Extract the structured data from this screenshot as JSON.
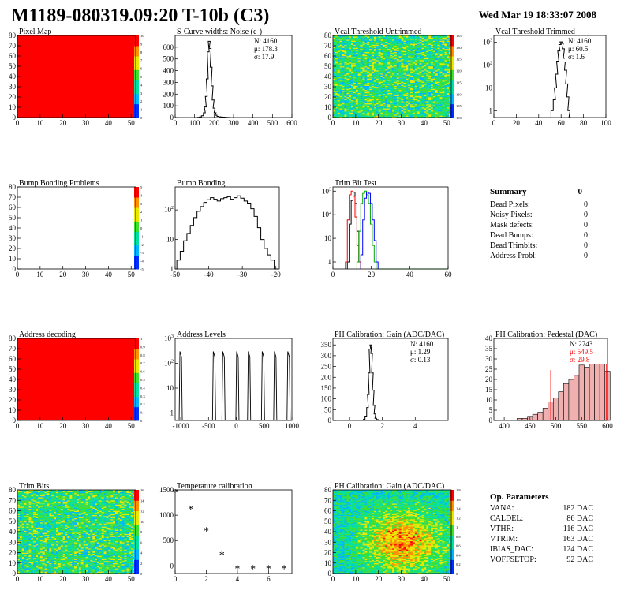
{
  "header": {
    "title": "M1189-080319.09:20 T-10b (C3)",
    "date": "Wed Mar 19 18:33:07 2008"
  },
  "colors": {
    "map_red": "#ff0000",
    "hist_line": "#000000"
  },
  "panels": {
    "pixel_map": {
      "title": "Pixel Map",
      "palette_ticks": [
        "10",
        "9",
        "8",
        "7",
        "6",
        "5",
        "4",
        "3",
        "2",
        "1",
        "0"
      ]
    },
    "noise": {
      "title": "S-Curve widths: Noise (e-)",
      "stats": [
        "N: 4160",
        "μ: 178.3",
        "σ: 17.9"
      ]
    },
    "vcal_untrimmed": {
      "title": "Vcal Threshold Untrimmed",
      "palette_ticks": [
        "135",
        "130",
        "125",
        "120",
        "115",
        "110",
        "105",
        "100"
      ]
    },
    "vcal_trimmed": {
      "title": "Vcal Threshold Trimmed",
      "stats": [
        "N: 4160",
        "μ: 60.5",
        "σ:  1.6"
      ]
    },
    "bump_problems": {
      "title": "Bump Bonding Problems",
      "palette_ticks": [
        "5",
        "4",
        "3",
        "2",
        "1",
        "0",
        "-1",
        "-2",
        "-3",
        "-4",
        "-5"
      ]
    },
    "bump_bonding": {
      "title": "Bump Bonding"
    },
    "trim_bit_test": {
      "title": "Trim Bit Test"
    },
    "summary": {
      "title": "Summary",
      "total": "0",
      "rows": [
        {
          "label": "Dead Pixels:",
          "value": "0"
        },
        {
          "label": "Noisy Pixels:",
          "value": "0"
        },
        {
          "label": "Mask defects:",
          "value": "0"
        },
        {
          "label": "Dead Bumps:",
          "value": "0"
        },
        {
          "label": "Dead Trimbits:",
          "value": "0"
        },
        {
          "label": "Address Probl:",
          "value": "0"
        }
      ]
    },
    "address_decoding": {
      "title": "Address decoding",
      "palette_ticks": [
        "1",
        "0.9",
        "0.8",
        "0.7",
        "0.6",
        "0.5",
        "0.4",
        "0.3",
        "0.2",
        "0.1",
        "0"
      ]
    },
    "address_levels": {
      "title": "Address Levels"
    },
    "ph_gain": {
      "title": "PH Calibration: Gain (ADC/DAC)",
      "stats": [
        "N: 4160",
        "μ: 1.29",
        "σ: 0.13"
      ]
    },
    "ph_pedestal": {
      "title": "PH Calibration: Pedestal (DAC)",
      "stats": [
        "N: 2743",
        "μ: 549.5",
        "σ: 29.8"
      ]
    },
    "trim_bits": {
      "title": "Trim Bits",
      "palette_ticks": [
        "16",
        "14",
        "12",
        "10",
        "8",
        "6",
        "4",
        "2",
        "0"
      ]
    },
    "temperature": {
      "title": "Temperature calibration"
    },
    "ph_gain_map": {
      "title": "PH Calibration: Gain (ADC/DAC)",
      "palette_ticks": [
        "1.8",
        "1.6",
        "1.4",
        "1.2",
        "1",
        "0.8",
        "0.6",
        "0.4",
        "0.2",
        "0"
      ]
    },
    "op_params": {
      "title": "Op. Parameters",
      "rows": [
        {
          "label": "VANA:",
          "value": "182 DAC"
        },
        {
          "label": "CALDEL:",
          "value": "86 DAC"
        },
        {
          "label": "VTHR:",
          "value": "116 DAC"
        },
        {
          "label": "VTRIM:",
          "value": "163 DAC"
        },
        {
          "label": "IBIAS_DAC:",
          "value": "124 DAC"
        },
        {
          "label": "VOFFSETOP:",
          "value": "92 DAC"
        }
      ]
    }
  },
  "chart_data": [
    {
      "id": "pixel_map",
      "type": "heatmap",
      "title": "Pixel Map",
      "xlim": [
        0,
        52
      ],
      "ylim": [
        0,
        80
      ],
      "xticks": [
        0,
        10,
        20,
        30,
        40,
        50
      ],
      "yticks": [
        0,
        10,
        20,
        30,
        40,
        50,
        60,
        70,
        80
      ],
      "fill": "uniform_max"
    },
    {
      "id": "noise",
      "type": "line",
      "title": "S-Curve widths: Noise (e-)",
      "xlim": [
        0,
        600
      ],
      "ylim": [
        0,
        700
      ],
      "xticks": [
        0,
        100,
        200,
        300,
        400,
        500,
        600
      ],
      "yticks": [
        0,
        100,
        200,
        300,
        400,
        500,
        600
      ],
      "x": [
        120,
        130,
        140,
        150,
        155,
        160,
        165,
        170,
        175,
        180,
        185,
        190,
        195,
        200,
        205,
        210,
        220,
        230,
        240,
        250,
        260,
        270,
        280
      ],
      "values": [
        2,
        5,
        15,
        40,
        90,
        180,
        330,
        560,
        650,
        590,
        430,
        270,
        150,
        80,
        40,
        20,
        10,
        6,
        4,
        3,
        2,
        1,
        0
      ]
    },
    {
      "id": "vcal_untrimmed",
      "type": "heatmap",
      "title": "Vcal Threshold Untrimmed",
      "xlim": [
        0,
        52
      ],
      "ylim": [
        0,
        80
      ],
      "xticks": [
        0,
        10,
        20,
        30,
        40,
        50
      ],
      "yticks": [
        0,
        10,
        20,
        30,
        40,
        50,
        60,
        70,
        80
      ],
      "fill": "random_green"
    },
    {
      "id": "vcal_trimmed",
      "type": "line",
      "title": "Vcal Threshold Trimmed",
      "log": true,
      "xlim": [
        0,
        100
      ],
      "ylim": [
        0.5,
        2000
      ],
      "xticks": [
        0,
        20,
        40,
        60,
        80,
        100
      ],
      "x": [
        52,
        54,
        55,
        56,
        57,
        58,
        59,
        60,
        61,
        62,
        63,
        64,
        65,
        66,
        67,
        68
      ],
      "values": [
        1,
        3,
        10,
        40,
        150,
        420,
        800,
        1050,
        900,
        520,
        200,
        60,
        15,
        4,
        1,
        0
      ]
    },
    {
      "id": "bump_problems",
      "type": "heatmap",
      "title": "Bump Bonding Problems",
      "xlim": [
        0,
        52
      ],
      "ylim": [
        0,
        80
      ],
      "xticks": [
        0,
        10,
        20,
        30,
        40,
        50
      ],
      "yticks": [
        0,
        10,
        20,
        30,
        40,
        50,
        60,
        70,
        80
      ],
      "fill": "empty"
    },
    {
      "id": "bump_bonding",
      "type": "line",
      "title": "Bump Bonding",
      "log": true,
      "xlim": [
        -50,
        -19
      ],
      "ylim": [
        1,
        600
      ],
      "xticks": [
        -50,
        -40,
        -30,
        -20
      ],
      "x": [
        -49,
        -48,
        -47,
        -46,
        -45,
        -44,
        -43,
        -42,
        -41,
        -40,
        -39,
        -38,
        -37,
        -36,
        -35,
        -34,
        -33,
        -32,
        -31,
        -30,
        -29,
        -28,
        -27,
        -26,
        -25,
        -24,
        -23,
        -22,
        -21,
        -20
      ],
      "values": [
        2,
        4,
        9,
        16,
        30,
        55,
        90,
        130,
        180,
        220,
        260,
        230,
        200,
        240,
        260,
        280,
        230,
        260,
        300,
        250,
        200,
        170,
        110,
        60,
        25,
        10,
        5,
        3,
        2,
        1
      ]
    },
    {
      "id": "trim_bit_test",
      "type": "line",
      "title": "Trim Bit Test",
      "log": true,
      "xlim": [
        0,
        60
      ],
      "ylim": [
        0.5,
        1500
      ],
      "xticks": [
        0,
        20,
        40,
        60
      ],
      "series": [
        {
          "color": "#000000",
          "x": [
            8,
            9,
            10,
            11,
            12,
            13,
            14
          ],
          "values": [
            1,
            40,
            400,
            900,
            300,
            20,
            1
          ]
        },
        {
          "color": "#ff0000",
          "x": [
            7,
            8,
            9,
            10,
            11,
            12,
            13,
            14
          ],
          "values": [
            1,
            60,
            700,
            1000,
            600,
            80,
            5,
            1
          ]
        },
        {
          "color": "#00aa00",
          "x": [
            13,
            14,
            15,
            16,
            17,
            18,
            19,
            20,
            21,
            22
          ],
          "values": [
            1,
            20,
            300,
            800,
            1000,
            700,
            300,
            40,
            5,
            1
          ]
        },
        {
          "color": "#0000ff",
          "x": [
            15,
            16,
            17,
            18,
            19,
            20,
            21,
            22,
            23
          ],
          "values": [
            2,
            60,
            500,
            900,
            800,
            300,
            60,
            8,
            1
          ]
        }
      ]
    },
    {
      "id": "address_decoding",
      "type": "heatmap",
      "title": "Address decoding",
      "xlim": [
        0,
        52
      ],
      "ylim": [
        0,
        80
      ],
      "xticks": [
        0,
        10,
        20,
        30,
        40,
        50
      ],
      "yticks": [
        0,
        10,
        20,
        30,
        40,
        50,
        60,
        70,
        80
      ],
      "fill": "uniform_max"
    },
    {
      "id": "address_levels",
      "type": "line",
      "title": "Address Levels",
      "log": true,
      "xlim": [
        -1100,
        1000
      ],
      "ylim": [
        0.5,
        1000
      ],
      "xticks": [
        -1000,
        -500,
        0,
        500,
        1000
      ],
      "peaks": [
        -1000,
        -400,
        -230,
        20,
        230,
        480,
        700,
        940
      ],
      "peak_values": [
        300,
        300,
        300,
        300,
        300,
        300,
        300,
        300
      ]
    },
    {
      "id": "ph_gain",
      "type": "line",
      "title": "PH Calibration: Gain (ADC/DAC)",
      "xlim": [
        -1,
        6
      ],
      "ylim": [
        0,
        380
      ],
      "xticks": [
        0,
        2,
        4
      ],
      "yticks": [
        0,
        50,
        100,
        150,
        200,
        250,
        300,
        350
      ],
      "x": [
        0.8,
        0.9,
        1.0,
        1.1,
        1.15,
        1.2,
        1.25,
        1.3,
        1.35,
        1.4,
        1.45,
        1.5,
        1.55,
        1.6,
        1.7,
        1.8
      ],
      "values": [
        2,
        5,
        20,
        60,
        120,
        220,
        330,
        350,
        310,
        220,
        140,
        70,
        30,
        10,
        4,
        1
      ]
    },
    {
      "id": "ph_pedestal",
      "type": "bar",
      "title": "PH Calibration: Pedestal (DAC)",
      "xlim": [
        380,
        600
      ],
      "ylim": [
        0,
        40
      ],
      "xticks": [
        400,
        450,
        500,
        550,
        600
      ],
      "yticks": [
        0,
        5,
        10,
        15,
        20,
        25,
        30,
        35,
        40
      ],
      "x": [
        420,
        430,
        440,
        450,
        460,
        470,
        480,
        490,
        500,
        510,
        520,
        530,
        540,
        550,
        560,
        570,
        580,
        590,
        600
      ],
      "values": [
        0,
        1,
        1,
        2,
        3,
        4,
        6,
        9,
        11,
        14,
        18,
        20,
        22,
        27,
        26,
        28,
        30,
        28,
        24
      ]
    },
    {
      "id": "trim_bits",
      "type": "heatmap",
      "title": "Trim Bits",
      "xlim": [
        0,
        52
      ],
      "ylim": [
        0,
        80
      ],
      "xticks": [
        0,
        10,
        20,
        30,
        40,
        50
      ],
      "yticks": [
        0,
        10,
        20,
        30,
        40,
        50,
        60,
        70,
        80
      ],
      "fill": "random_green"
    },
    {
      "id": "temperature",
      "type": "scatter",
      "title": "Temperature calibration",
      "xlim": [
        0,
        7.5
      ],
      "ylim": [
        -150,
        1500
      ],
      "xticks": [
        0,
        2,
        4,
        6
      ],
      "yticks": [
        0,
        500,
        1000,
        1500
      ],
      "x": [
        0,
        1,
        2,
        3,
        4,
        5,
        6,
        7
      ],
      "values": [
        1450,
        1130,
        700,
        220,
        -50,
        -50,
        -50,
        -50
      ]
    },
    {
      "id": "ph_gain_map",
      "type": "heatmap",
      "title": "PH Calibration: Gain (ADC/DAC)",
      "xlim": [
        0,
        52
      ],
      "ylim": [
        0,
        80
      ],
      "xticks": [
        0,
        10,
        20,
        30,
        40,
        50
      ],
      "yticks": [
        0,
        10,
        20,
        30,
        40,
        50,
        60,
        70,
        80
      ],
      "fill": "random_warm"
    }
  ]
}
